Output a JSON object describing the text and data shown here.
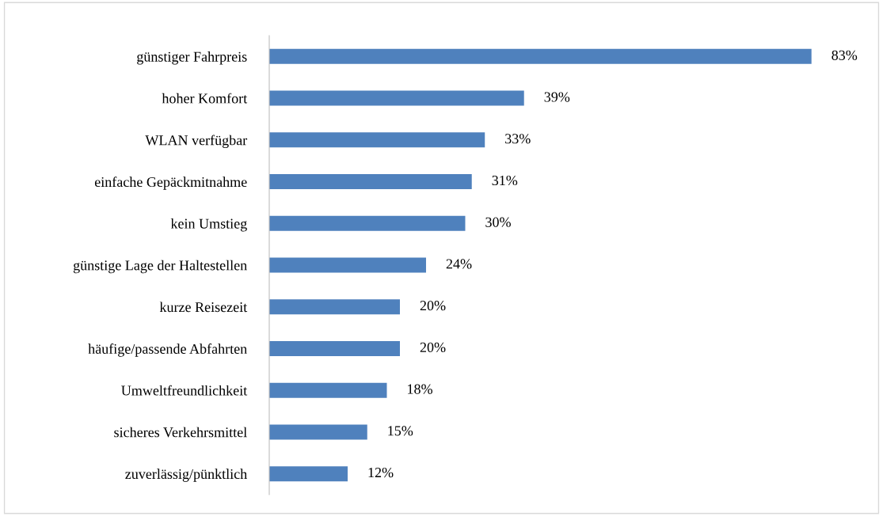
{
  "chart_data": {
    "type": "bar",
    "orientation": "horizontal",
    "categories": [
      "günstiger Fahrpreis",
      "hoher Komfort",
      "WLAN verfügbar",
      "einfache Gepäckmitnahme",
      "kein Umstieg",
      "günstige Lage der Haltestellen",
      "kurze Reisezeit",
      "häufige/passende Abfahrten",
      "Umweltfreundlichkeit",
      "sicheres Verkehrsmittel",
      "zuverlässig/pünktlich"
    ],
    "values": [
      83,
      39,
      33,
      31,
      30,
      24,
      20,
      20,
      18,
      15,
      12
    ],
    "value_labels": [
      "83%",
      "39%",
      "33%",
      "31%",
      "30%",
      "24%",
      "20%",
      "20%",
      "18%",
      "15%",
      "12%"
    ],
    "color": "#4f81bd",
    "grid": false,
    "legend": false
  }
}
